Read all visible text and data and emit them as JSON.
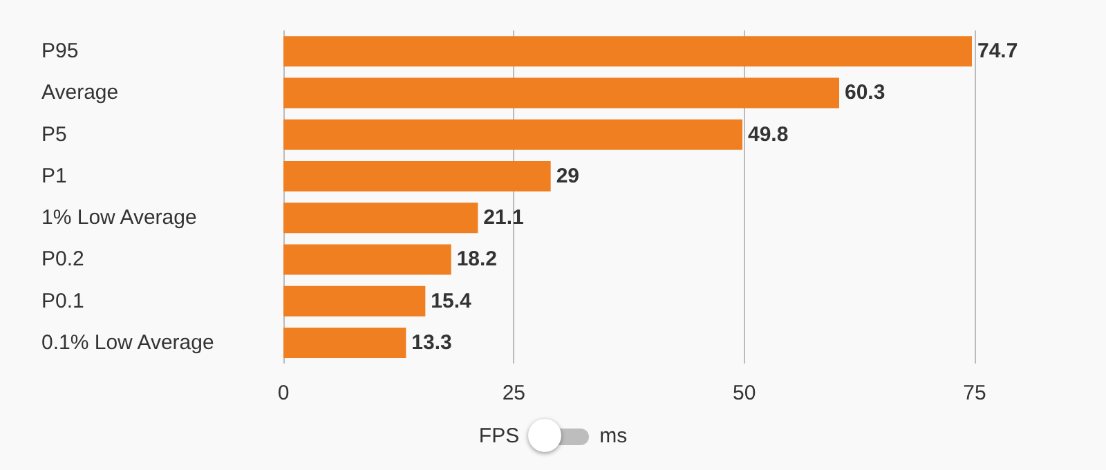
{
  "chart_data": {
    "type": "bar",
    "orientation": "horizontal",
    "categories": [
      "P95",
      "Average",
      "P5",
      "P1",
      "1% Low Average",
      "P0.2",
      "P0.1",
      "0.1% Low Average"
    ],
    "values": [
      74.7,
      60.3,
      49.8,
      29,
      21.1,
      18.2,
      15.4,
      13.3
    ],
    "color": "#f07f21",
    "data_labels": true,
    "xlim": [
      0,
      75
    ],
    "xticks": [
      0,
      25,
      50,
      75
    ],
    "grid": "x",
    "annotations": [
      "FPS",
      "ms"
    ]
  }
}
